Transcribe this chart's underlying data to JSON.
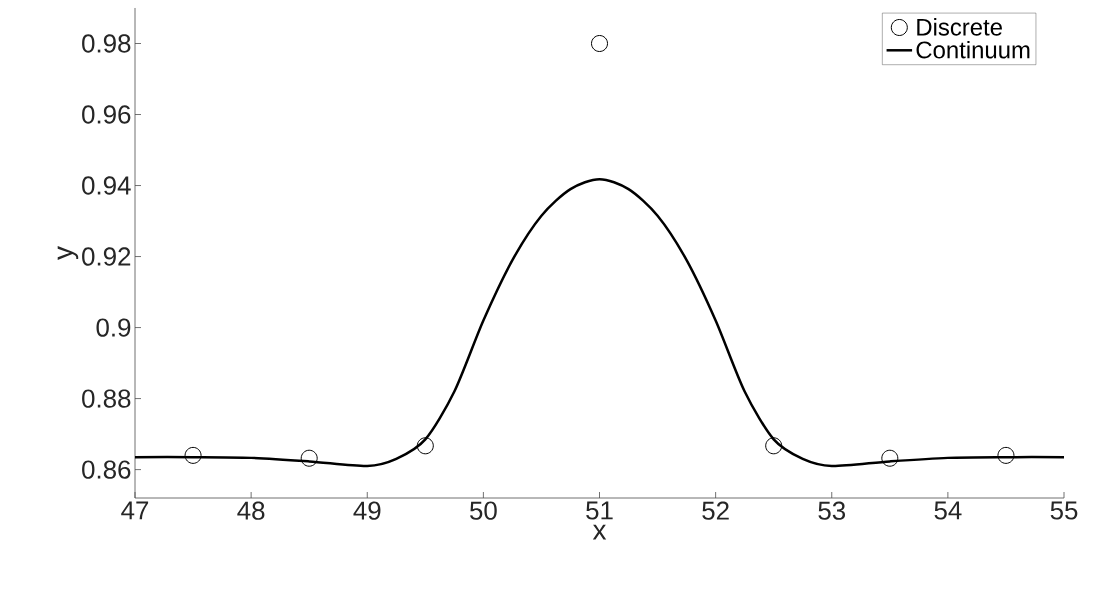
{
  "chart_data": {
    "type": "scatter",
    "xlabel": "x",
    "ylabel": "y",
    "xlim": [
      47,
      55
    ],
    "ylim": [
      0.852,
      0.99
    ],
    "xticks": [
      47,
      48,
      49,
      50,
      51,
      52,
      53,
      54,
      55
    ],
    "yticks": [
      0.86,
      0.88,
      0.9,
      0.92,
      0.94,
      0.96,
      0.98
    ],
    "legend": "top right",
    "series": [
      {
        "name": "Discrete",
        "type": "scatter",
        "marker": "circle",
        "color": "#000000",
        "x": [
          47.5,
          48.5,
          49.5,
          51,
          52.5,
          53.5,
          54.5
        ],
        "values": [
          0.864,
          0.8632,
          0.8667,
          0.98,
          0.8667,
          0.8632,
          0.864
        ]
      },
      {
        "name": "Continuum",
        "type": "line",
        "marker": "none",
        "color": "#000000",
        "x": [
          47,
          47.5,
          48,
          48.5,
          49,
          49.25,
          49.5,
          49.75,
          50,
          50.25,
          50.5,
          50.75,
          51,
          51.25,
          51.5,
          51.75,
          52,
          52.25,
          52.5,
          52.75,
          53,
          53.5,
          54,
          54.5,
          55
        ],
        "values": [
          0.8635,
          0.8635,
          0.8633,
          0.8623,
          0.861,
          0.863,
          0.8685,
          0.882,
          0.902,
          0.919,
          0.9315,
          0.939,
          0.9418,
          0.939,
          0.9315,
          0.919,
          0.902,
          0.882,
          0.8685,
          0.863,
          0.861,
          0.8623,
          0.8633,
          0.8635,
          0.8635
        ]
      }
    ]
  }
}
